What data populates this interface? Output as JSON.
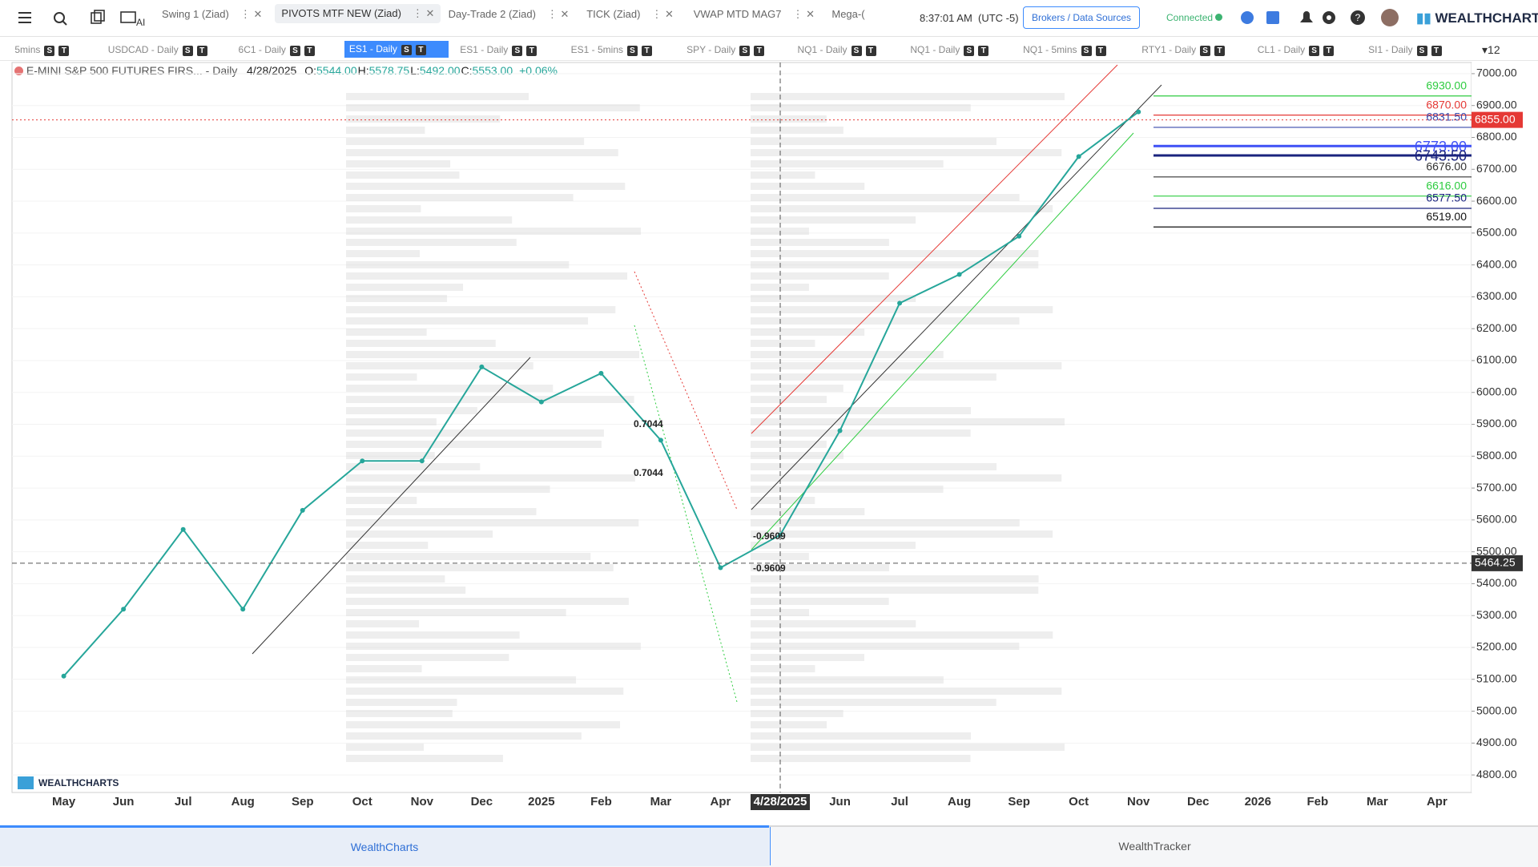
{
  "toolbar": {
    "ai": "AI",
    "tabs": [
      "Swing 1 (Ziad)",
      "PIVOTS MTF NEW (Ziad)",
      "Day-Trade 2 (Ziad)",
      "TICK (Ziad)",
      "VWAP MTD MAG7",
      "Mega-("
    ],
    "time": "8:37:01 AM",
    "timezone": "(UTC -5)",
    "brokers": "Brokers / Data Sources",
    "status": "Connected",
    "brand": "WEALTHCHARTS"
  },
  "symbol_tabs": {
    "tabs": [
      "5mins",
      "USDCAD - Daily",
      "6C1 - Daily",
      "ES1 - Daily",
      "ES1 - Daily",
      "ES1 - 5mins",
      "SPY - Daily",
      "NQ1 - Daily",
      "NQ1 - Daily",
      "NQ1 - 5mins",
      "RTY1 - Daily",
      "CL1 - Daily",
      "SI1 - Daily"
    ],
    "badges": [
      "S",
      "T"
    ],
    "count": "12"
  },
  "legend": {
    "symbol": "E-MINI S&P 500 FUTURES FIRS... - Daily",
    "date": "4/28/2025",
    "ohlc": [
      {
        "label": "O:",
        "value": "5544.00"
      },
      {
        "label": "H:",
        "value": "5578.75"
      },
      {
        "label": "L:",
        "value": "5492.00"
      },
      {
        "label": "C:",
        "value": "5553.00"
      }
    ],
    "change": "+0.06%"
  },
  "chart_data": {
    "type": "line",
    "categories": [
      "May",
      "Jun",
      "Jul",
      "Aug",
      "Sep",
      "Oct",
      "Nov",
      "Dec",
      "2025",
      "Feb",
      "Mar",
      "Apr",
      "4/28/2025",
      "Jun",
      "Jul",
      "Aug",
      "Sep",
      "Oct",
      "Nov",
      "Dec",
      "2026",
      "Feb",
      "Mar",
      "Apr"
    ],
    "values": [
      5110,
      5320,
      5570,
      5320,
      5630,
      5785,
      5785,
      6080,
      5970,
      6060,
      5850,
      5450,
      5553,
      5880,
      6280,
      6370,
      6490,
      6740,
      6880,
      null,
      null,
      null,
      null,
      null
    ],
    "color": "#26a69a",
    "ylim": [
      4745,
      7035
    ],
    "yticks": [
      {
        "value": 4800,
        "label": "4800.00"
      },
      {
        "value": 4900,
        "label": "4900.00"
      },
      {
        "value": 5000,
        "label": "5000.00"
      },
      {
        "value": 5100,
        "label": "5100.00"
      },
      {
        "value": 5200,
        "label": "5200.00"
      },
      {
        "value": 5300,
        "label": "5300.00"
      },
      {
        "value": 5400,
        "label": "5400.00"
      },
      {
        "value": 5500,
        "label": "5500.00"
      },
      {
        "value": 5600,
        "label": "5600.00"
      },
      {
        "value": 5700,
        "label": "5700.00"
      },
      {
        "value": 5800,
        "label": "5800.00"
      },
      {
        "value": 5900,
        "label": "5900.00"
      },
      {
        "value": 6000,
        "label": "6000.00"
      },
      {
        "value": 6100,
        "label": "6100.00"
      },
      {
        "value": 6200,
        "label": "6200.00"
      },
      {
        "value": 6300,
        "label": "6300.00"
      },
      {
        "value": 6400,
        "label": "6400.00"
      },
      {
        "value": 6500,
        "label": "6500.00"
      },
      {
        "value": 6600,
        "label": "6600.00"
      },
      {
        "value": 6700,
        "label": "6700.00"
      },
      {
        "value": 6800,
        "label": "6800.00"
      },
      {
        "value": 6900,
        "label": "6900.00"
      },
      {
        "value": 7000,
        "label": "7000.00"
      }
    ],
    "grid": true,
    "levels": [
      {
        "value": 6930,
        "label": "6930.00",
        "color": "#2ecc40"
      },
      {
        "value": 6870,
        "label": "6870.00",
        "color": "#e53935"
      },
      {
        "value": 6831.5,
        "label": "6831.50",
        "color": "#3949ab"
      },
      {
        "value": 6773,
        "label": "6773.00",
        "color": "#3f51f5"
      },
      {
        "value": 6743.5,
        "label": "6743.50",
        "color": "#1a237e"
      },
      {
        "value": 6676,
        "label": "6676.00",
        "color": "#333333"
      },
      {
        "value": 6616,
        "label": "6616.00",
        "color": "#2ecc40"
      },
      {
        "value": 6577.5,
        "label": "6577.50",
        "color": "#1a237e"
      },
      {
        "value": 6519,
        "label": "6519.00",
        "color": "#111111"
      }
    ],
    "last_price": {
      "value": 6855,
      "label": "6855.00"
    },
    "crosshair": {
      "value": 5464.25,
      "label": "5464.25"
    },
    "annotations": [
      "0.7044",
      "0.7044",
      "-0.9609",
      "-0.9609"
    ],
    "watermark": "WEALTHCHARTS"
  },
  "bottom_tabs": [
    "WealthCharts",
    "WealthTracker"
  ]
}
